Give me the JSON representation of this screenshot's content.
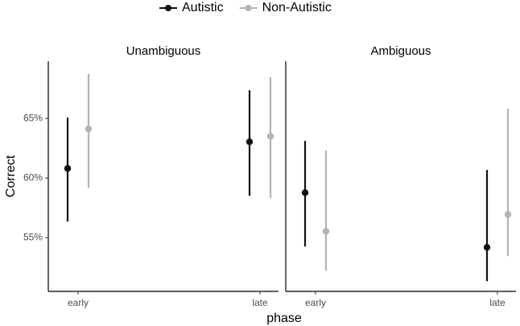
{
  "chart_data": {
    "type": "pointrange",
    "ylabel": "Correct",
    "xlabel": "phase",
    "categories": [
      "early",
      "late"
    ],
    "ylim": [
      50.5,
      69.8
    ],
    "yticks": [
      {
        "value": 55,
        "label": "55%"
      },
      {
        "value": 60,
        "label": "60%"
      },
      {
        "value": 65,
        "label": "65%"
      }
    ],
    "series": [
      {
        "name": "Autistic",
        "color": "#111111"
      },
      {
        "name": "Non-Autistic",
        "color": "#b3b3b3"
      }
    ],
    "panels": [
      {
        "title": "Unambiguous",
        "series": [
          {
            "values": [
              60.81,
              63.04
            ],
            "lower": [
              56.35,
              58.51
            ],
            "upper": [
              65.07,
              67.36
            ]
          },
          {
            "values": [
              64.12,
              63.51
            ],
            "lower": [
              59.19,
              58.31
            ],
            "upper": [
              68.72,
              68.45
            ]
          }
        ]
      },
      {
        "title": "Ambiguous",
        "series": [
          {
            "values": [
              58.78,
              54.19
            ],
            "lower": [
              54.26,
              51.35
            ],
            "upper": [
              63.11,
              60.68
            ]
          },
          {
            "values": [
              55.54,
              56.96
            ],
            "lower": [
              52.23,
              53.45
            ],
            "upper": [
              62.3,
              65.81
            ]
          }
        ]
      }
    ]
  }
}
